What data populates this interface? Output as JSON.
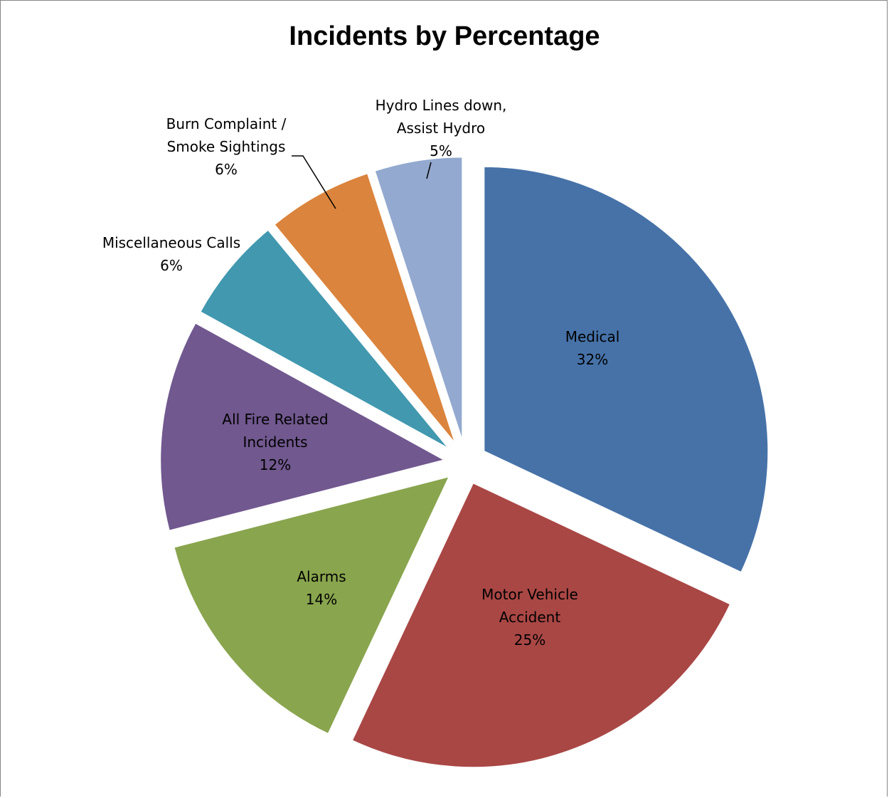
{
  "chart_data": {
    "type": "pie",
    "title": "Incidents by Percentage",
    "slices": [
      {
        "label": [
          "Medical"
        ],
        "value": 32,
        "percent_label": "32%",
        "color": "#4672A8"
      },
      {
        "label": [
          "Motor Vehicle",
          "Accident"
        ],
        "value": 25,
        "percent_label": "25%",
        "color": "#A94745"
      },
      {
        "label": [
          "Alarms"
        ],
        "value": 14,
        "percent_label": "14%",
        "color": "#89A54E"
      },
      {
        "label": [
          "All Fire Related",
          "Incidents"
        ],
        "value": 12,
        "percent_label": "12%",
        "color": "#71588F"
      },
      {
        "label": [
          "Miscellaneous Calls"
        ],
        "value": 6,
        "percent_label": "6%",
        "color": "#4198AF"
      },
      {
        "label": [
          "Burn Complaint /",
          "Smoke Sightings"
        ],
        "value": 6,
        "percent_label": "6%",
        "color": "#DB843D"
      },
      {
        "label": [
          "Hydro Lines down,",
          "Assist Hydro"
        ],
        "value": 5,
        "percent_label": "5%",
        "color": "#93A9CF"
      }
    ],
    "start_angle": "12 o'clock, clockwise",
    "exploded": true,
    "legend": "none"
  }
}
